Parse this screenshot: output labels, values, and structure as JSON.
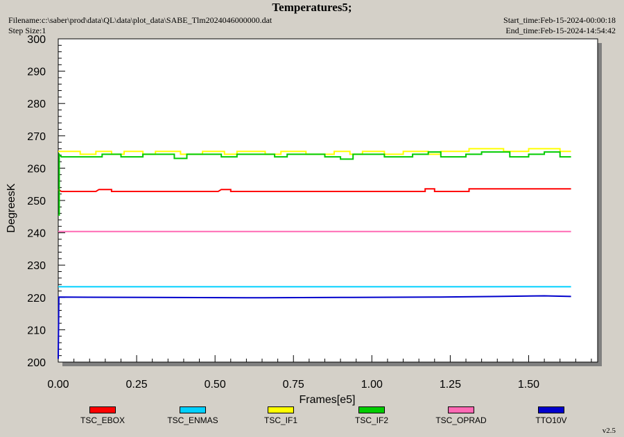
{
  "header": {
    "title": "Temperatures5;",
    "filename": "Filename:c:\\saber\\prod\\data\\QL\\data\\plot_data\\SABE_Tlm2024046000000.dat",
    "step_size": "Step Size:1",
    "start_time": "Start_time:Feb-15-2024-00:00:18",
    "end_time": "End_time:Feb-15-2024-14:54:42"
  },
  "footer": {
    "version": "v2.5"
  },
  "chart_data": {
    "type": "line",
    "title": "Temperatures5;",
    "xlabel": "Frames[e5]",
    "ylabel": "DegreesK",
    "xlim": [
      0,
      1.72
    ],
    "ylim": [
      200,
      300
    ],
    "xticks": [
      "0.00",
      "0.25",
      "0.50",
      "0.75",
      "1.00",
      "1.25",
      "1.50"
    ],
    "yticks": [
      "200",
      "210",
      "220",
      "230",
      "240",
      "250",
      "260",
      "270",
      "280",
      "290",
      "300"
    ],
    "grid": false,
    "legend_position": "bottom",
    "series": [
      {
        "name": "TSC_EBOX",
        "color": "#ff0000",
        "points": [
          [
            0,
            253.4
          ],
          [
            0.01,
            252.8
          ],
          [
            0.12,
            252.8
          ],
          [
            0.13,
            253.4
          ],
          [
            0.17,
            253.4
          ],
          [
            0.17,
            252.8
          ],
          [
            0.51,
            252.8
          ],
          [
            0.52,
            253.4
          ],
          [
            0.55,
            253.4
          ],
          [
            0.55,
            252.8
          ],
          [
            1.17,
            252.8
          ],
          [
            1.17,
            253.6
          ],
          [
            1.2,
            253.6
          ],
          [
            1.2,
            252.8
          ],
          [
            1.31,
            252.8
          ],
          [
            1.31,
            253.6
          ],
          [
            1.635,
            253.6
          ]
        ]
      },
      {
        "name": "TSC_ENMAS",
        "color": "#00d0ff",
        "points": [
          [
            0,
            223.3
          ],
          [
            1.635,
            223.3
          ]
        ]
      },
      {
        "name": "TSC_IF1",
        "color": "#ffff00",
        "points": [
          [
            0,
            265.2
          ],
          [
            0.07,
            265.2
          ],
          [
            0.07,
            264.3
          ],
          [
            0.12,
            264.3
          ],
          [
            0.12,
            265.2
          ],
          [
            0.17,
            265.2
          ],
          [
            0.17,
            264.3
          ],
          [
            0.21,
            264.3
          ],
          [
            0.21,
            265.2
          ],
          [
            0.27,
            265.2
          ],
          [
            0.27,
            264.3
          ],
          [
            0.31,
            264.3
          ],
          [
            0.31,
            265.2
          ],
          [
            0.39,
            265.2
          ],
          [
            0.39,
            264.3
          ],
          [
            0.46,
            264.3
          ],
          [
            0.46,
            265.2
          ],
          [
            0.53,
            265.2
          ],
          [
            0.53,
            264.3
          ],
          [
            0.57,
            264.3
          ],
          [
            0.57,
            265.2
          ],
          [
            0.66,
            265.2
          ],
          [
            0.66,
            264.3
          ],
          [
            0.71,
            264.3
          ],
          [
            0.71,
            265.2
          ],
          [
            0.79,
            265.2
          ],
          [
            0.79,
            264.3
          ],
          [
            0.88,
            264.3
          ],
          [
            0.88,
            265.2
          ],
          [
            0.93,
            265.2
          ],
          [
            0.93,
            264.3
          ],
          [
            0.97,
            264.3
          ],
          [
            0.97,
            265.2
          ],
          [
            1.04,
            265.2
          ],
          [
            1.04,
            264.3
          ],
          [
            1.1,
            264.3
          ],
          [
            1.1,
            265.2
          ],
          [
            1.18,
            265.2
          ],
          [
            1.18,
            264.3
          ],
          [
            1.22,
            264.3
          ],
          [
            1.22,
            265.2
          ],
          [
            1.31,
            265.2
          ],
          [
            1.31,
            266.0
          ],
          [
            1.42,
            266.0
          ],
          [
            1.42,
            265.2
          ],
          [
            1.5,
            265.2
          ],
          [
            1.5,
            266.0
          ],
          [
            1.6,
            266.0
          ],
          [
            1.6,
            265.2
          ],
          [
            1.635,
            265.2
          ]
        ]
      },
      {
        "name": "TSC_IF2",
        "color": "#00cc00",
        "points": [
          [
            0,
            245.5
          ],
          [
            0.003,
            245.5
          ],
          [
            0.003,
            264.3
          ],
          [
            0.01,
            263.5
          ],
          [
            0.14,
            263.5
          ],
          [
            0.14,
            264.3
          ],
          [
            0.2,
            264.3
          ],
          [
            0.2,
            263.5
          ],
          [
            0.27,
            263.5
          ],
          [
            0.27,
            264.3
          ],
          [
            0.37,
            264.3
          ],
          [
            0.37,
            263.0
          ],
          [
            0.41,
            263.0
          ],
          [
            0.41,
            264.3
          ],
          [
            0.52,
            264.3
          ],
          [
            0.52,
            263.5
          ],
          [
            0.57,
            263.5
          ],
          [
            0.57,
            264.3
          ],
          [
            0.69,
            264.3
          ],
          [
            0.69,
            263.5
          ],
          [
            0.73,
            263.5
          ],
          [
            0.73,
            264.3
          ],
          [
            0.85,
            264.3
          ],
          [
            0.85,
            263.5
          ],
          [
            0.9,
            263.5
          ],
          [
            0.9,
            262.8
          ],
          [
            0.94,
            262.8
          ],
          [
            0.94,
            264.3
          ],
          [
            1.04,
            264.3
          ],
          [
            1.04,
            263.5
          ],
          [
            1.13,
            263.5
          ],
          [
            1.13,
            264.3
          ],
          [
            1.18,
            264.3
          ],
          [
            1.18,
            265.0
          ],
          [
            1.22,
            265.0
          ],
          [
            1.22,
            263.5
          ],
          [
            1.3,
            263.5
          ],
          [
            1.3,
            264.3
          ],
          [
            1.35,
            264.3
          ],
          [
            1.35,
            265.0
          ],
          [
            1.44,
            265.0
          ],
          [
            1.44,
            263.5
          ],
          [
            1.5,
            263.5
          ],
          [
            1.5,
            264.3
          ],
          [
            1.55,
            264.3
          ],
          [
            1.55,
            265.0
          ],
          [
            1.6,
            265.0
          ],
          [
            1.6,
            263.5
          ],
          [
            1.635,
            263.5
          ]
        ]
      },
      {
        "name": "TSC_OPRAD",
        "color": "#ff69b4",
        "points": [
          [
            0,
            240.4
          ],
          [
            1.635,
            240.4
          ]
        ]
      },
      {
        "name": "TTO10V",
        "color": "#0000cc",
        "points": [
          [
            0,
            201.0
          ],
          [
            0.002,
            220.1
          ],
          [
            0.3,
            220.0
          ],
          [
            0.6,
            219.9
          ],
          [
            0.9,
            220.0
          ],
          [
            1.2,
            220.1
          ],
          [
            1.4,
            220.3
          ],
          [
            1.55,
            220.5
          ],
          [
            1.635,
            220.3
          ]
        ]
      }
    ]
  }
}
